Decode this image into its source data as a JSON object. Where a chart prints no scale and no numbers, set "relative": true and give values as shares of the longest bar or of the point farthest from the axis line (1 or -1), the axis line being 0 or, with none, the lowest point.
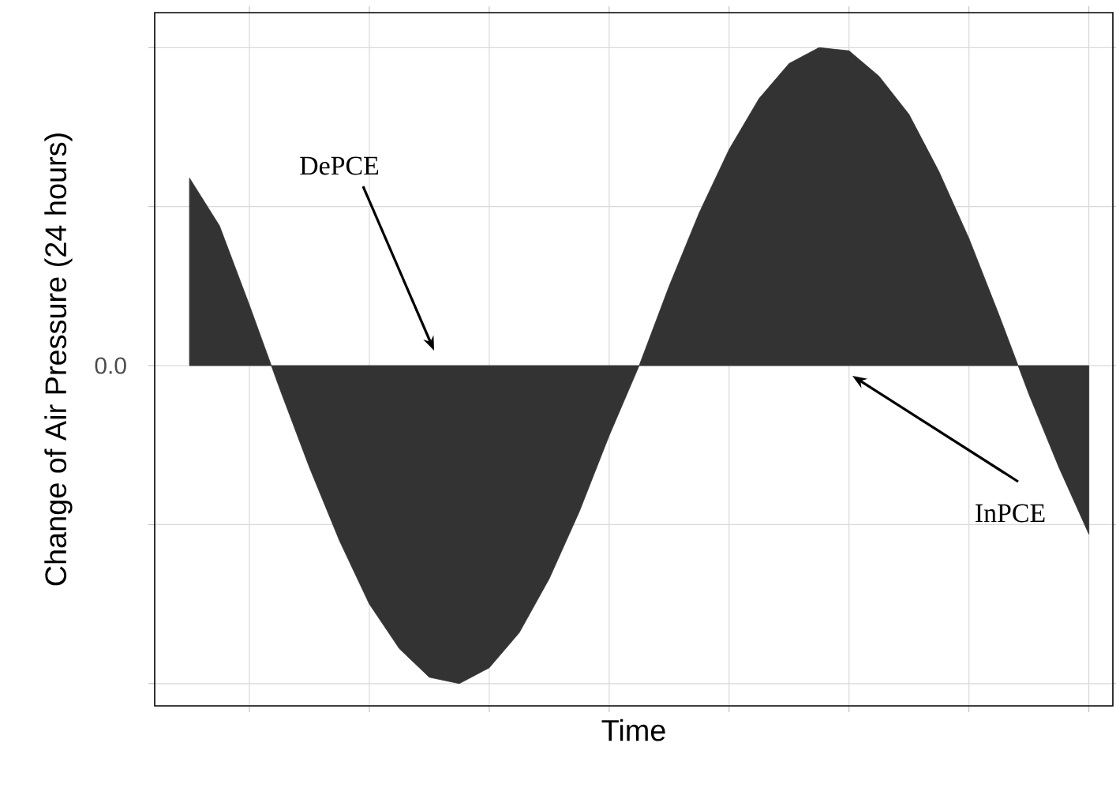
{
  "chart_data": {
    "type": "area",
    "relative": true,
    "xlabel": "Time",
    "ylabel": "Change of Air Pressure (24 hours)",
    "categories": [
      null,
      null,
      null,
      null,
      null,
      null,
      null,
      null,
      null,
      null,
      null,
      null,
      null,
      null,
      null,
      null,
      null,
      null,
      null,
      null,
      null,
      null,
      null,
      null,
      null,
      null,
      null,
      null,
      null,
      null,
      null
    ],
    "series": [
      {
        "color": "#333333",
        "values": [
          0.59,
          0.44,
          0.19,
          -0.07,
          -0.32,
          -0.55,
          -0.75,
          -0.89,
          -0.98,
          -1.0,
          -0.95,
          -0.84,
          -0.67,
          -0.46,
          -0.22,
          0,
          0.25,
          0.48,
          0.68,
          0.84,
          0.95,
          1.0,
          0.99,
          0.91,
          0.79,
          0.61,
          0.4,
          0.16,
          -0.09,
          -0.32,
          -0.53
        ]
      }
    ],
    "grid": true,
    "annotations": [
      "0.0",
      "DePCE",
      "InPCE"
    ]
  }
}
